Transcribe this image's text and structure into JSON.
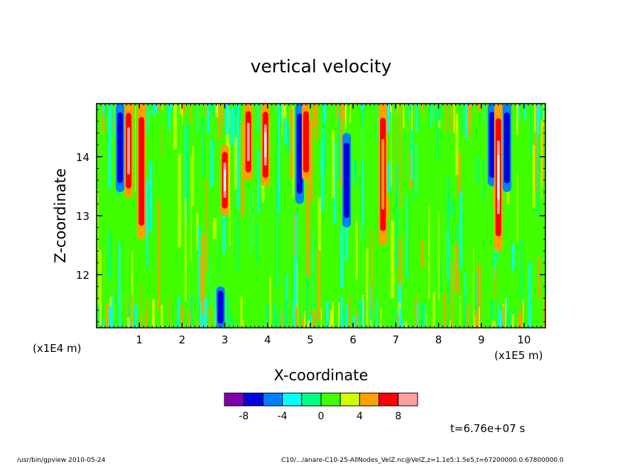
{
  "chart_data": {
    "type": "heatmap",
    "title": "vertical velocity",
    "xlabel": "X-coordinate",
    "ylabel": "Z-coordinate",
    "x_unit": "(x1E5 m)",
    "y_unit": "(x1E4 m)",
    "xlim": [
      0,
      10.5
    ],
    "ylim": [
      11.1,
      14.9
    ],
    "x_ticks": [
      1,
      2,
      3,
      4,
      5,
      6,
      7,
      8,
      9,
      10
    ],
    "y_ticks": [
      12,
      13,
      14
    ],
    "colorbar": {
      "levels": [
        -10,
        -8,
        -6,
        -4,
        -2,
        0,
        2,
        4,
        6,
        8,
        10
      ],
      "tick_labels": [
        "-8",
        "-4",
        "0",
        "4",
        "8"
      ],
      "tick_values": [
        -8,
        -4,
        0,
        4,
        8
      ],
      "colors": [
        "#8000b0",
        "#0000e0",
        "#0080ff",
        "#00ffff",
        "#00ff80",
        "#40ff00",
        "#d0ff00",
        "#ffa000",
        "#ff0000",
        "#ffa0a0"
      ]
    },
    "time_label": "t=6.76e+07 s",
    "features": [
      {
        "x": 0.55,
        "z_range": [
          13.4,
          14.9
        ],
        "value": -8
      },
      {
        "x": 0.75,
        "z_range": [
          13.3,
          14.9
        ],
        "value": 8
      },
      {
        "x": 1.05,
        "z_range": [
          12.6,
          14.9
        ],
        "value": 6
      },
      {
        "x": 2.9,
        "z_range": [
          11.1,
          11.8
        ],
        "value": -8
      },
      {
        "x": 3.0,
        "z_range": [
          13.0,
          14.2
        ],
        "value": 10
      },
      {
        "x": 3.55,
        "z_range": [
          13.6,
          14.9
        ],
        "value": 8
      },
      {
        "x": 3.95,
        "z_range": [
          13.5,
          14.9
        ],
        "value": 10
      },
      {
        "x": 4.75,
        "z_range": [
          13.2,
          14.9
        ],
        "value": -8
      },
      {
        "x": 4.9,
        "z_range": [
          13.6,
          14.9
        ],
        "value": 6
      },
      {
        "x": 5.85,
        "z_range": [
          12.8,
          14.4
        ],
        "value": -8
      },
      {
        "x": 6.7,
        "z_range": [
          12.5,
          14.9
        ],
        "value": 4
      },
      {
        "x": 9.25,
        "z_range": [
          13.5,
          14.9
        ],
        "value": -8
      },
      {
        "x": 9.4,
        "z_range": [
          12.4,
          14.9
        ],
        "value": 10
      },
      {
        "x": 9.6,
        "z_range": [
          13.4,
          14.9
        ],
        "value": -8
      }
    ]
  },
  "footer": {
    "left": "/usr/bin/gpview   2010-05-24",
    "right": "C10/.../anare-C10-25-AllNodes_VelZ.nc@VelZ,z=1.1e5:1.5e5,t=67200000.0:67800000.0"
  }
}
